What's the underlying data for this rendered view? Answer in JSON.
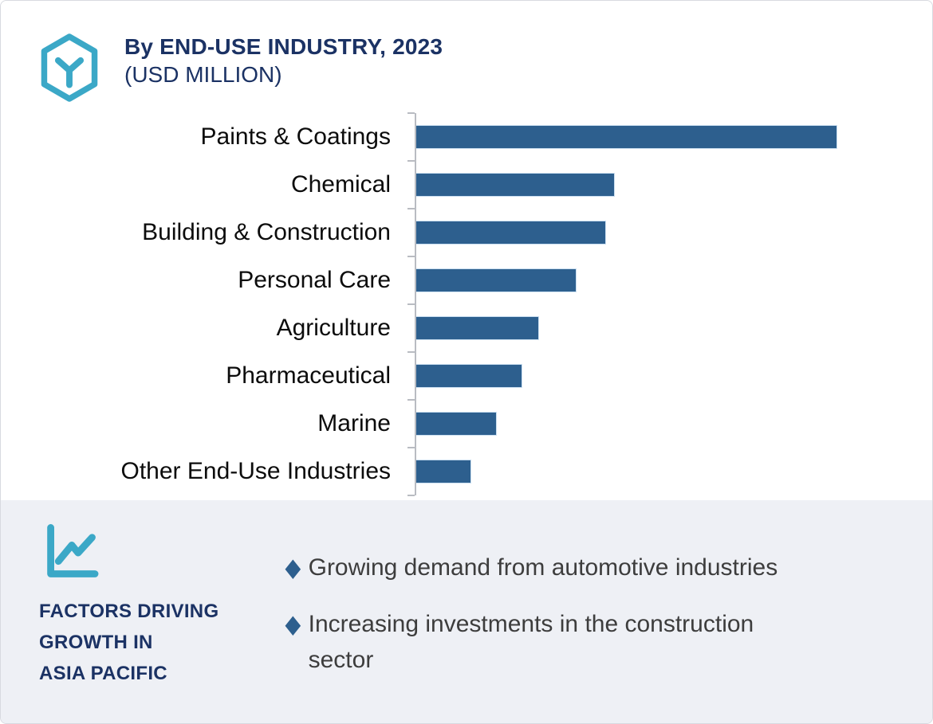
{
  "header": {
    "title": "By END-USE INDUSTRY, 2023",
    "subtitle": "(USD MILLION)"
  },
  "chart_data": {
    "type": "bar",
    "orientation": "horizontal",
    "title": "By END-USE INDUSTRY, 2023 (USD MILLION)",
    "xlabel": "",
    "ylabel": "",
    "categories": [
      "Paints & Coatings",
      "Chemical",
      "Building & Construction",
      "Personal Care",
      "Agriculture",
      "Pharmaceutical",
      "Marine",
      "Other End-Use Industries"
    ],
    "values": [
      100,
      47,
      45,
      38,
      29,
      25,
      19,
      13
    ],
    "value_note": "no numeric axis labels shown; values are relative bar lengths indexed to largest bar = 100",
    "xlim": [
      0,
      120
    ],
    "grid": false,
    "legend": "none",
    "bar_color": "#2D5F8E",
    "bar_border_color": "#C9DEF0",
    "axis_color": "#B9BCC2"
  },
  "factors": {
    "title": "FACTORS DRIVING\nGROWTH IN\nASIA PACIFIC",
    "bullet_glyph": "◆",
    "bullets": [
      "Growing demand from automotive industries",
      "Increasing investments in the construction\nsector"
    ]
  },
  "icons": {
    "logo": "hexagon-y-molecule-icon",
    "factors_icon": "line-chart-icon",
    "bullet_icon": "diamond-bullet-icon"
  },
  "colors": {
    "navy": "#1B3264",
    "teal": "#3BA8C7",
    "bar_blue": "#2D5F8E",
    "panel_bg": "#EEF0F5",
    "axis_gray": "#B9BCC2",
    "text_dark": "#3D3D3D",
    "frame_border": "#D8DAE0"
  }
}
